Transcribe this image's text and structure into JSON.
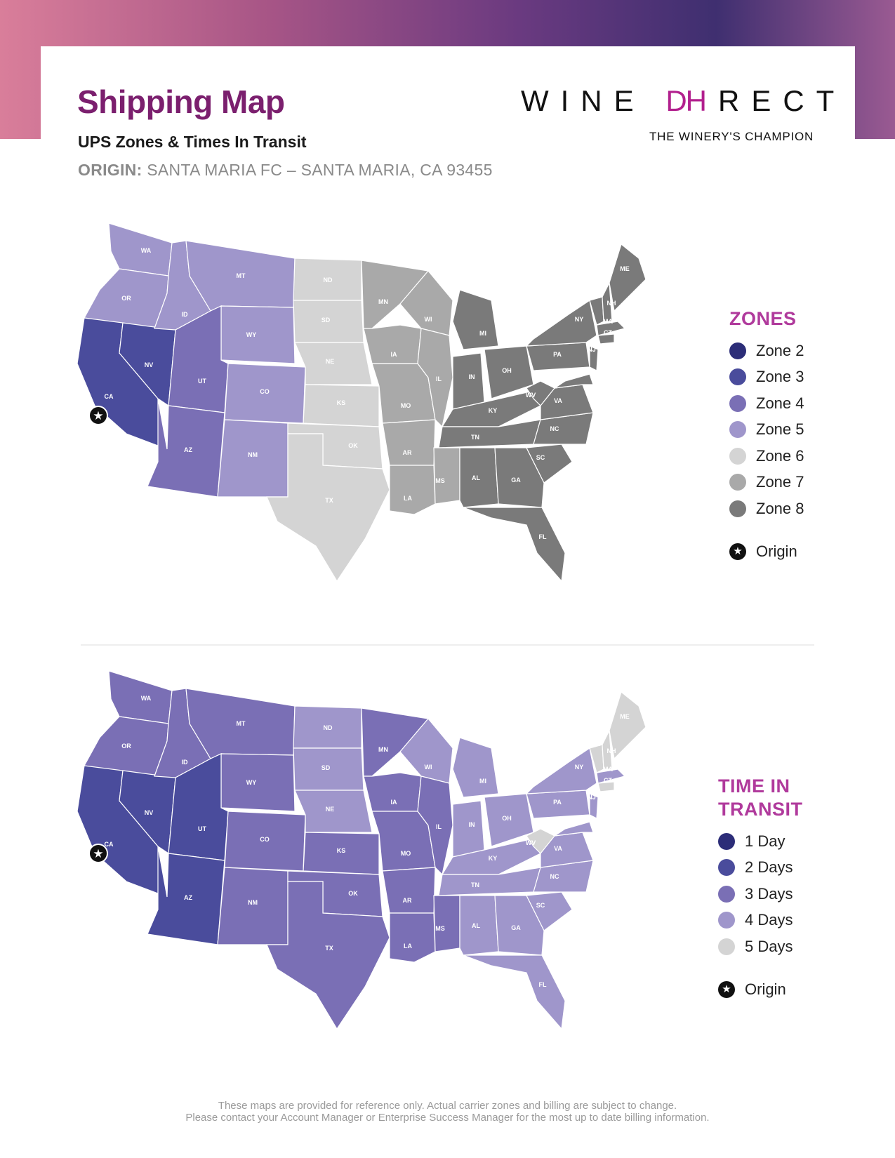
{
  "header": {
    "title": "Shipping Map",
    "subtitle": "UPS Zones & Times In Transit",
    "origin_label": "ORIGIN:",
    "origin_value": "SANTA MARIA FC – SANTA MARIA, CA 93455"
  },
  "logo": {
    "word_left": "WINE",
    "word_mark": "DH",
    "word_right": "RECT",
    "tagline": "THE WINERY'S CHAMPION",
    "brand_color": "#b2208e"
  },
  "zones_legend": {
    "title": "ZONES",
    "items": [
      {
        "label": "Zone 2",
        "color": "#2c2d78"
      },
      {
        "label": "Zone 3",
        "color": "#4a4c9c"
      },
      {
        "label": "Zone 4",
        "color": "#7a6fb5"
      },
      {
        "label": "Zone 5",
        "color": "#9f96cb"
      },
      {
        "label": "Zone 6",
        "color": "#d4d4d4"
      },
      {
        "label": "Zone 7",
        "color": "#a9a9a9"
      },
      {
        "label": "Zone 8",
        "color": "#7a7a7a"
      }
    ],
    "origin_label": "Origin"
  },
  "transit_legend": {
    "title_line1": "TIME IN",
    "title_line2": "TRANSIT",
    "items": [
      {
        "label": "1 Day",
        "color": "#2c2d78"
      },
      {
        "label": "2 Days",
        "color": "#4a4c9c"
      },
      {
        "label": "3 Days",
        "color": "#7a6fb5"
      },
      {
        "label": "4 Days",
        "color": "#9f96cb"
      },
      {
        "label": "5 Days",
        "color": "#d4d4d4"
      }
    ],
    "origin_label": "Origin"
  },
  "states": [
    "WA",
    "OR",
    "CA",
    "NV",
    "ID",
    "MT",
    "WY",
    "UT",
    "AZ",
    "CO",
    "NM",
    "ND",
    "SD",
    "NE",
    "KS",
    "OK",
    "TX",
    "MN",
    "IA",
    "MO",
    "AR",
    "LA",
    "WI",
    "IL",
    "MI",
    "IN",
    "OH",
    "KY",
    "TN",
    "MS",
    "AL",
    "GA",
    "FL",
    "SC",
    "NC",
    "VA",
    "WV",
    "PA",
    "NY",
    "MD",
    "NJ",
    "VT",
    "NH",
    "MA",
    "CT",
    "ME"
  ],
  "zone_map": {
    "WA": 5,
    "OR": 5,
    "CA": 3,
    "NV": 3,
    "ID": 5,
    "MT": 5,
    "WY": 5,
    "UT": 4,
    "AZ": 4,
    "CO": 5,
    "NM": 5,
    "ND": 6,
    "SD": 6,
    "NE": 6,
    "KS": 6,
    "OK": 6,
    "TX": 6,
    "MN": 7,
    "IA": 7,
    "MO": 7,
    "AR": 7,
    "LA": 7,
    "WI": 7,
    "IL": 7,
    "MI": 8,
    "IN": 8,
    "OH": 8,
    "KY": 8,
    "TN": 8,
    "MS": 7,
    "AL": 8,
    "GA": 8,
    "FL": 8,
    "SC": 8,
    "NC": 8,
    "VA": 8,
    "WV": 8,
    "PA": 8,
    "NY": 8,
    "MD": 8,
    "NJ": 8,
    "VT": 8,
    "NH": 8,
    "MA": 8,
    "CT": 8,
    "ME": 8
  },
  "transit_map": {
    "WA": 3,
    "OR": 3,
    "CA": 2,
    "NV": 2,
    "ID": 3,
    "MT": 3,
    "WY": 3,
    "UT": 2,
    "AZ": 2,
    "CO": 3,
    "NM": 3,
    "ND": 4,
    "SD": 4,
    "NE": 4,
    "KS": 3,
    "OK": 3,
    "TX": 3,
    "MN": 3,
    "IA": 3,
    "MO": 3,
    "AR": 3,
    "LA": 3,
    "WI": 4,
    "IL": 3,
    "MI": 4,
    "IN": 4,
    "OH": 4,
    "KY": 4,
    "TN": 4,
    "MS": 3,
    "AL": 4,
    "GA": 4,
    "FL": 4,
    "SC": 4,
    "NC": 4,
    "VA": 4,
    "WV": 5,
    "PA": 4,
    "NY": 4,
    "MD": 4,
    "NJ": 4,
    "VT": 5,
    "NH": 5,
    "MA": 4,
    "CT": 5,
    "ME": 5
  },
  "footer": {
    "line1": "These maps are provided for reference only. Actual carrier zones and billing are subject to change.",
    "line2": "Please contact your Account Manager or Enterprise Success Manager for the most up to date billing information."
  }
}
